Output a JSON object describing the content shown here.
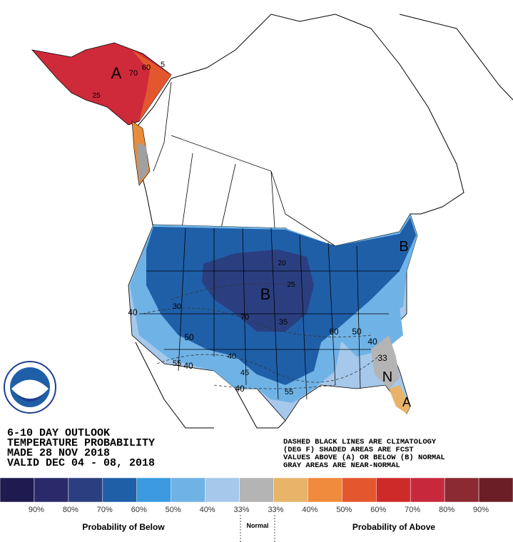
{
  "header": {
    "lines": [
      "6-10 DAY OUTLOOK",
      "TEMPERATURE PROBABILITY",
      "MADE  28 NOV 2018",
      "VALID  DEC 04 - 08, 2018"
    ]
  },
  "notes": [
    "DASHED BLACK LINES ARE CLIMATOLOGY",
    "(DEG F) SHADED AREAS ARE FCST",
    "VALUES ABOVE (A) OR BELOW (B) NORMAL",
    "GRAY AREAS ARE NEAR-NORMAL"
  ],
  "map": {
    "labels": [
      "A",
      "70",
      "60",
      "5",
      "25",
      "B",
      "B",
      "N",
      "A",
      "20",
      "25",
      "70",
      "35",
      "30",
      "40",
      "50",
      "55",
      "40",
      "40",
      "45",
      "40",
      "55",
      "60",
      "50",
      "40",
      "33"
    ]
  },
  "legend": {
    "colors": [
      "#1f1a4f",
      "#2a2a6b",
      "#2b3f80",
      "#1f5fa8",
      "#3b9ae0",
      "#6fb2e6",
      "#a6c8ea",
      "#b4b4b4",
      "#e8b46a",
      "#f08a3c",
      "#e4572e",
      "#cf2a2a",
      "#c8283c",
      "#8b2a30",
      "#6b1e25"
    ],
    "ticks": [
      "90%",
      "80%",
      "70%",
      "60%",
      "50%",
      "40%",
      "33%",
      "33%",
      "40%",
      "50%",
      "60%",
      "70%",
      "80%",
      "90%"
    ],
    "below": "Probability of Below",
    "normal": "Normal",
    "above": "Probability of Above"
  }
}
